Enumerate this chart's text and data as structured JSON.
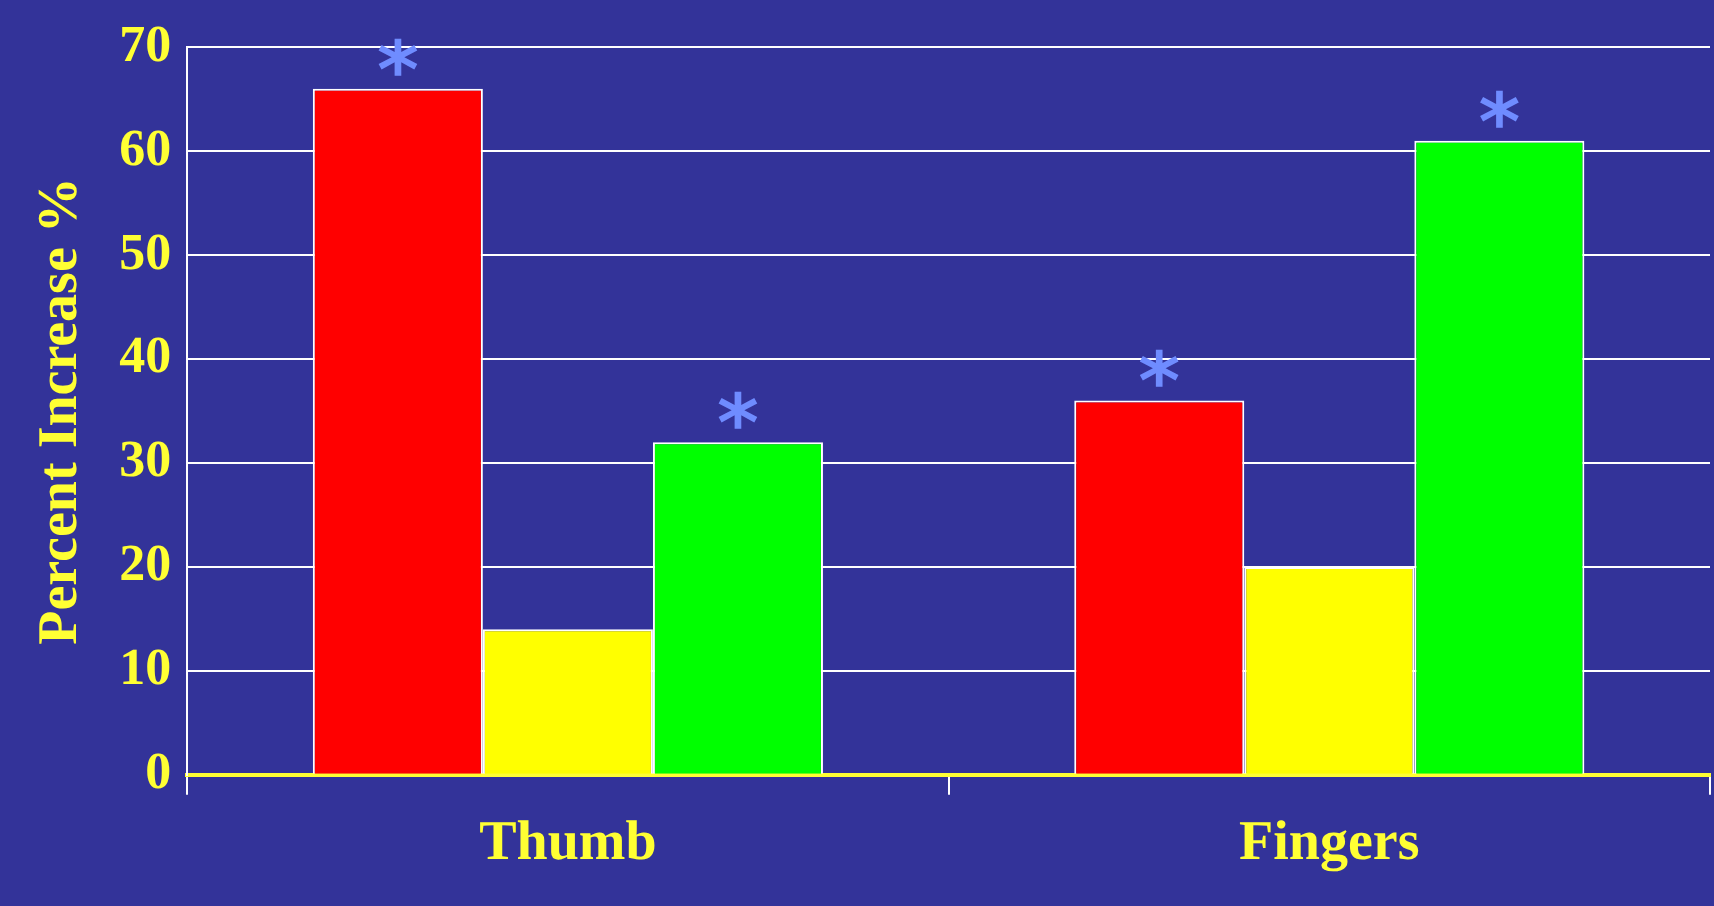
{
  "chart_data": {
    "type": "bar",
    "ylabel": "Percent Increase %",
    "categories": [
      "Thumb",
      "Fingers"
    ],
    "series": [
      {
        "color": "#ff0000",
        "values": [
          66,
          36
        ]
      },
      {
        "color": "#ffff00",
        "values": [
          14,
          20
        ]
      },
      {
        "color": "#00ff00",
        "values": [
          32,
          61
        ]
      }
    ],
    "ylim": [
      0,
      70
    ],
    "yticks": [
      0,
      10,
      20,
      30,
      40,
      50,
      60,
      70
    ],
    "grid": "y",
    "legend": false,
    "annotations": [
      "*",
      "*",
      "*",
      "*"
    ]
  }
}
